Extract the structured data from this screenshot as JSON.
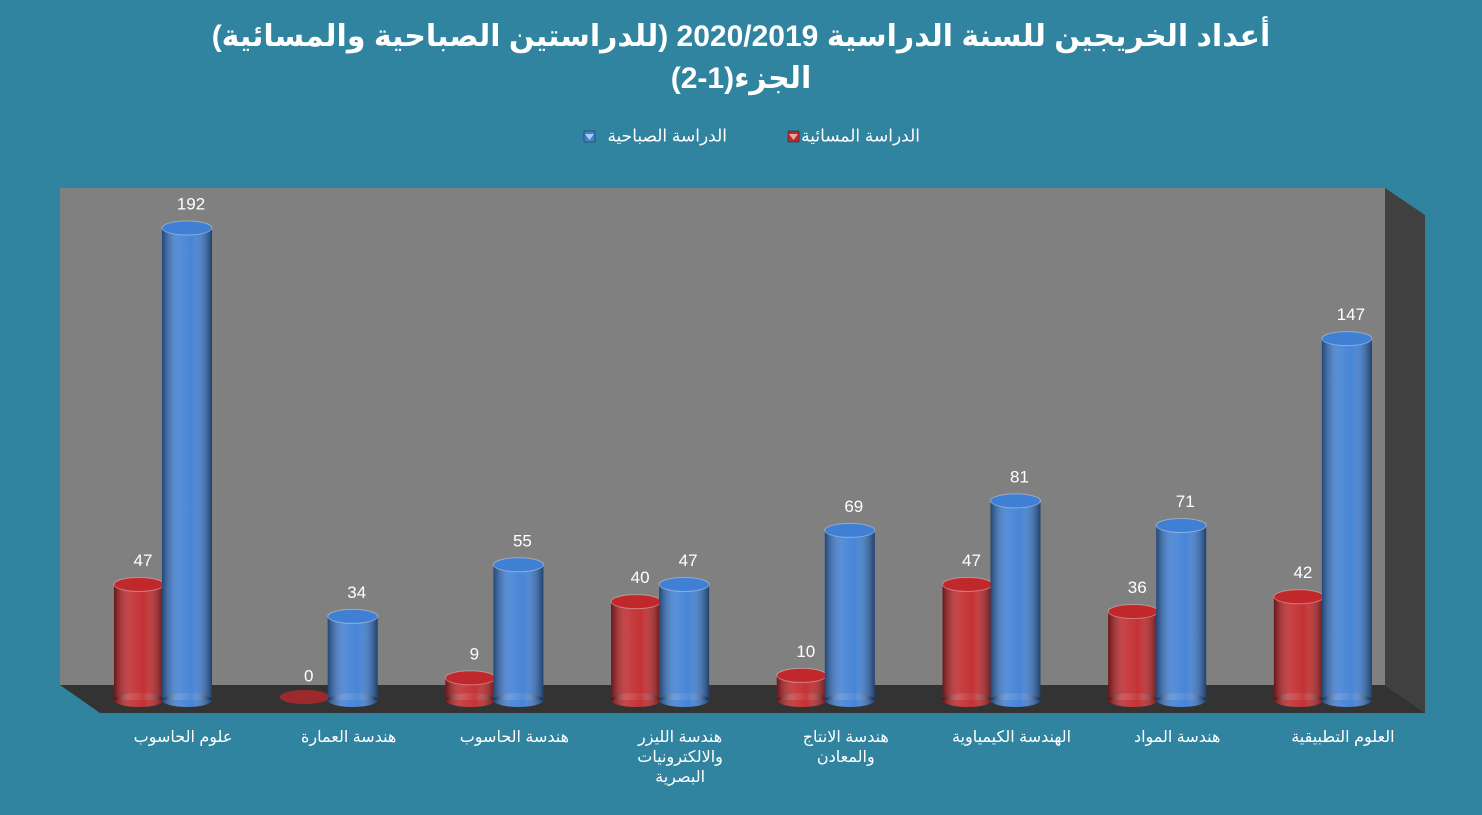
{
  "chart_data": {
    "type": "bar",
    "title": [
      "أعداد الخريجين للسنة الدراسية 2020/2019 (للدراستين الصباحية والمسائية)",
      "الجزء(1-2)"
    ],
    "categories": [
      "علوم الحاسوب",
      "هندسة العمارة",
      "هندسة الحاسوب",
      "هندسة الليزر والالكترونيات البصرية",
      "هندسة الانتاج والمعادن",
      "الهندسة الكيمياوية",
      "هندسة المواد",
      "العلوم التطبيقية"
    ],
    "series": [
      {
        "name": "الدراسة المسائية",
        "color": "#c0282b",
        "values": [
          47,
          0,
          9,
          40,
          10,
          47,
          36,
          42
        ]
      },
      {
        "name": "الدراسة الصباحية",
        "color": "#3f7fd4",
        "values": [
          192,
          34,
          55,
          47,
          69,
          81,
          71,
          147
        ]
      }
    ],
    "grid": false
  }
}
